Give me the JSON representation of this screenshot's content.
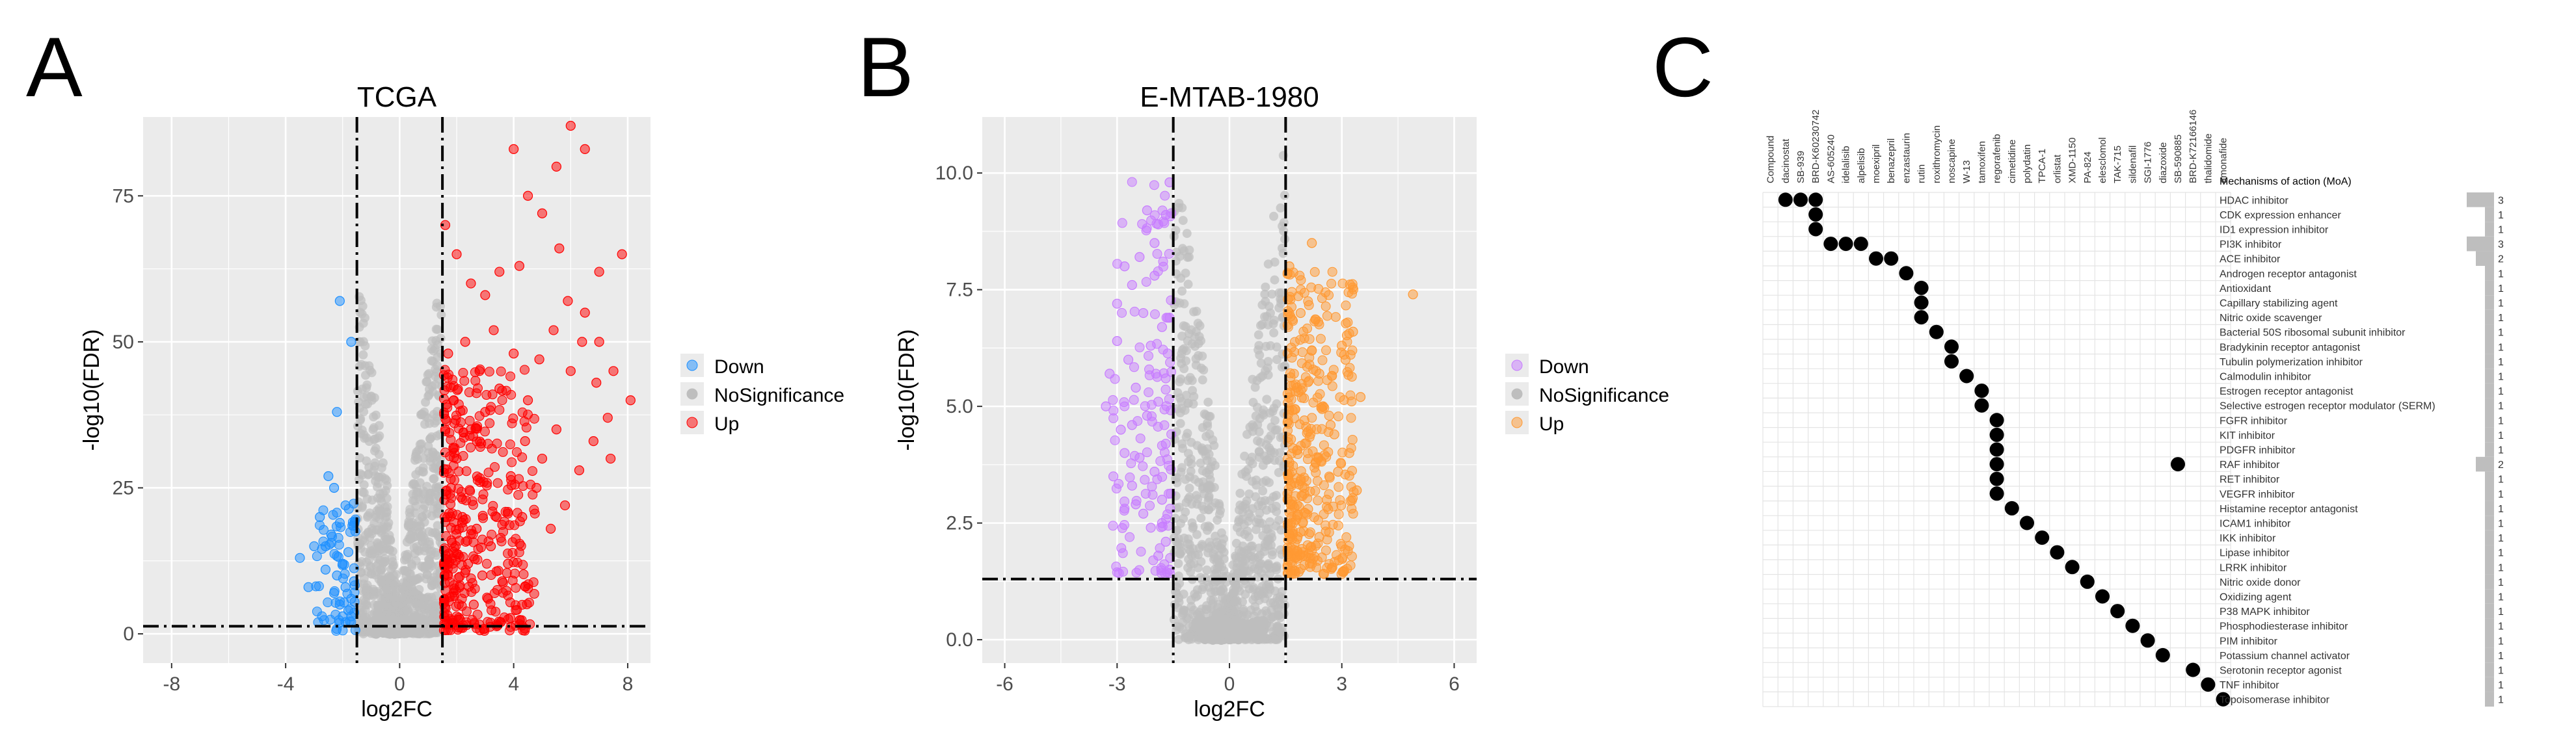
{
  "panels": {
    "a": {
      "letter": "A"
    },
    "b": {
      "letter": "B"
    },
    "c": {
      "letter": "C"
    }
  },
  "colors": {
    "panel_bg": "#ebebeb",
    "grid": "#ffffff",
    "down_a": "#1e90ff",
    "up_a": "#ff0000",
    "down_b": "#c77cff",
    "up_b": "#ff9933",
    "nosig": "#bebebe",
    "dot": "#000000",
    "bar": "#bebebe"
  },
  "chart_data": [
    {
      "type": "scatter",
      "title": "TCGA",
      "xlabel": "log2FC",
      "ylabel": "-log10(FDR)",
      "xlim": [
        -9,
        8.8
      ],
      "ylim": [
        -5,
        88.5
      ],
      "xticks": [
        -8,
        -4,
        0,
        4,
        8
      ],
      "yticks": [
        0,
        25,
        50,
        75
      ],
      "fc_threshold": 1.5,
      "fdr_line": 1.3,
      "legend": {
        "position": "right",
        "entries": [
          "Down",
          "NoSignificance",
          "Up"
        ]
      },
      "series": [
        {
          "name": "Down",
          "points": [
            [
              -2.2,
              38
            ],
            [
              -1.7,
              50
            ],
            [
              -2.3,
              25
            ],
            [
              -2.5,
              27
            ],
            [
              -1.9,
              22
            ],
            [
              -2.1,
              19
            ],
            [
              -2.4,
              17
            ],
            [
              -2.6,
              15
            ],
            [
              -1.8,
              14
            ],
            [
              -2.0,
              12
            ],
            [
              -2.2,
              10
            ],
            [
              -1.9,
              8
            ],
            [
              -1.7,
              6
            ],
            [
              -2.1,
              5
            ],
            [
              -1.8,
              4
            ],
            [
              -2.3,
              7
            ],
            [
              -1.6,
              9
            ],
            [
              -2.0,
              3
            ],
            [
              -3.0,
              15
            ],
            [
              -2.8,
              20
            ],
            [
              -2.6,
              11
            ],
            [
              -3.5,
              13
            ],
            [
              -3.2,
              8
            ],
            [
              -1.9,
              2
            ],
            [
              -1.7,
              3
            ],
            [
              -2.1,
              57
            ]
          ]
        },
        {
          "name": "NoSignificance",
          "range": {
            "x": [
              -1.5,
              1.5
            ],
            "y": [
              0,
              60
            ]
          }
        },
        {
          "name": "Up",
          "points": [
            [
              1.6,
              70
            ],
            [
              2.0,
              65
            ],
            [
              2.5,
              60
            ],
            [
              3.0,
              58
            ],
            [
              3.5,
              62
            ],
            [
              4.0,
              83
            ],
            [
              4.5,
              75
            ],
            [
              5.0,
              72
            ],
            [
              5.5,
              80
            ],
            [
              6.0,
              87
            ],
            [
              6.5,
              83
            ],
            [
              7.0,
              62
            ],
            [
              7.8,
              65
            ],
            [
              8.1,
              40
            ],
            [
              7.5,
              45
            ],
            [
              7.0,
              50
            ],
            [
              6.5,
              55
            ],
            [
              6.0,
              45
            ],
            [
              5.5,
              35
            ],
            [
              5.0,
              30
            ],
            [
              4.5,
              40
            ],
            [
              4.0,
              48
            ],
            [
              3.5,
              42
            ],
            [
              3.0,
              38
            ],
            [
              2.5,
              35
            ],
            [
              2.0,
              30
            ],
            [
              1.8,
              25
            ],
            [
              2.2,
              20
            ],
            [
              2.7,
              18
            ],
            [
              3.2,
              15
            ],
            [
              3.8,
              12
            ],
            [
              4.3,
              20
            ],
            [
              4.8,
              25
            ],
            [
              5.3,
              18
            ],
            [
              5.8,
              22
            ],
            [
              6.3,
              28
            ],
            [
              6.8,
              33
            ],
            [
              7.3,
              37
            ],
            [
              1.7,
              10
            ],
            [
              2.1,
              8
            ],
            [
              2.6,
              5
            ],
            [
              3.1,
              6
            ],
            [
              3.6,
              9
            ],
            [
              1.9,
              14
            ],
            [
              2.4,
              12
            ],
            [
              2.9,
              10
            ],
            [
              3.4,
              20
            ],
            [
              3.9,
              27
            ],
            [
              4.4,
              33
            ],
            [
              4.9,
              47
            ],
            [
              5.4,
              52
            ],
            [
              5.9,
              57
            ],
            [
              6.4,
              50
            ],
            [
              6.9,
              43
            ],
            [
              7.4,
              30
            ],
            [
              5.6,
              66
            ],
            [
              4.2,
              63
            ],
            [
              3.3,
              52
            ],
            [
              2.8,
              45
            ],
            [
              2.3,
              50
            ],
            [
              1.9,
              40
            ],
            [
              1.6,
              35
            ],
            [
              1.7,
              48
            ]
          ]
        }
      ]
    },
    {
      "type": "scatter",
      "title": "E-MTAB-1980",
      "xlabel": "log2FC",
      "ylabel": "-log10(FDR)",
      "xlim": [
        -6.6,
        6.6
      ],
      "ylim": [
        -0.5,
        11.2
      ],
      "xticks": [
        -6,
        -3,
        0,
        3,
        6
      ],
      "yticks": [
        0.0,
        2.5,
        5.0,
        7.5,
        10.0
      ],
      "fc_threshold": 1.5,
      "fdr_line": 1.3,
      "legend": {
        "position": "right",
        "entries": [
          "Down",
          "NoSignificance",
          "Up"
        ]
      },
      "series": [
        {
          "name": "Down",
          "points": [
            [
              -1.6,
              9.8
            ],
            [
              -1.7,
              9.1
            ],
            [
              -1.9,
              8.9
            ],
            [
              -2.0,
              8.5
            ],
            [
              -2.4,
              8.2
            ],
            [
              -2.8,
              8.0
            ],
            [
              -2.6,
              7.6
            ],
            [
              -3.0,
              7.2
            ],
            [
              -2.3,
              7.0
            ],
            [
              -1.8,
              6.7
            ],
            [
              -2.1,
              6.3
            ],
            [
              -2.7,
              6.0
            ],
            [
              -3.2,
              5.7
            ],
            [
              -2.5,
              5.4
            ],
            [
              -1.9,
              5.1
            ],
            [
              -2.2,
              4.8
            ],
            [
              -2.9,
              4.5
            ],
            [
              -1.7,
              4.2
            ],
            [
              -2.4,
              3.9
            ],
            [
              -2.0,
              3.6
            ],
            [
              -2.6,
              3.3
            ],
            [
              -1.8,
              3.0
            ],
            [
              -2.3,
              2.7
            ],
            [
              -2.1,
              2.4
            ],
            [
              -1.7,
              2.1
            ],
            [
              -1.9,
              1.8
            ],
            [
              -1.6,
              1.5
            ],
            [
              -2.5,
              2.9
            ],
            [
              -2.8,
              4.0
            ],
            [
              -3.3,
              5.0
            ],
            [
              -3.0,
              6.4
            ],
            [
              -2.2,
              9.2
            ],
            [
              -2.0,
              7.8
            ],
            [
              -1.6,
              6.9
            ],
            [
              -1.7,
              5.6
            ],
            [
              -2.6,
              4.6
            ],
            [
              -3.1,
              3.5
            ],
            [
              -1.8,
              2.5
            ]
          ]
        },
        {
          "name": "NoSignificance",
          "range": {
            "x": [
              -1.5,
              1.5
            ],
            "y": [
              0,
              10.3
            ]
          }
        },
        {
          "name": "Up",
          "points": [
            [
              1.6,
              8.0
            ],
            [
              2.2,
              8.5
            ],
            [
              3.0,
              6.3
            ],
            [
              3.3,
              6.6
            ],
            [
              3.1,
              6.0
            ],
            [
              2.4,
              5.7
            ],
            [
              4.9,
              7.4
            ],
            [
              1.8,
              5.4
            ],
            [
              2.5,
              5.0
            ],
            [
              2.0,
              4.7
            ],
            [
              2.8,
              4.4
            ],
            [
              1.7,
              4.1
            ],
            [
              2.3,
              3.8
            ],
            [
              2.9,
              3.6
            ],
            [
              3.4,
              3.2
            ],
            [
              1.9,
              3.4
            ],
            [
              2.6,
              3.0
            ],
            [
              2.1,
              2.8
            ],
            [
              1.7,
              2.5
            ],
            [
              2.4,
              2.2
            ],
            [
              1.8,
              1.9
            ],
            [
              2.0,
              1.6
            ],
            [
              3.5,
              5.2
            ],
            [
              3.2,
              4.0
            ],
            [
              1.6,
              3.8
            ],
            [
              2.7,
              4.6
            ],
            [
              2.2,
              6.2
            ],
            [
              1.9,
              7.0
            ]
          ]
        }
      ]
    },
    {
      "type": "matrix",
      "header_label": "Compound",
      "moa_header": "Mechanisms of action (MoA)",
      "compounds": [
        "dacinostat",
        "SB-939",
        "BRD-K60230742",
        "AS-605240",
        "idelalisib",
        "alpelisib",
        "moexipril",
        "benazepril",
        "enzastaurin",
        "rutin",
        "roxithromycin",
        "noscapine",
        "W-13",
        "tamoxifen",
        "regorafenib",
        "cimetidine",
        "polydatin",
        "TPCA-1",
        "orlistat",
        "XMD-1150",
        "PA-824",
        "elesclomol",
        "TAK-715",
        "sildenafil",
        "SGI-1776",
        "diazoxide",
        "SB-590885",
        "BRD-K72166146",
        "thalidomide",
        "amonafide"
      ],
      "moa": [
        {
          "name": "HDAC inhibitor",
          "count": 3
        },
        {
          "name": "CDK expression enhancer",
          "count": 1
        },
        {
          "name": "ID1 expression inhibitor",
          "count": 1
        },
        {
          "name": "PI3K inhibitor",
          "count": 3
        },
        {
          "name": "ACE inhibitor",
          "count": 2
        },
        {
          "name": "Androgen receptor antagonist",
          "count": 1
        },
        {
          "name": "Antioxidant",
          "count": 1
        },
        {
          "name": "Capillary stabilizing agent",
          "count": 1
        },
        {
          "name": "Nitric oxide scavenger",
          "count": 1
        },
        {
          "name": "Bacterial 50S ribosomal subunit inhibitor",
          "count": 1
        },
        {
          "name": "Bradykinin receptor antagonist",
          "count": 1
        },
        {
          "name": "Tubulin polymerization inhibitor",
          "count": 1
        },
        {
          "name": "Calmodulin inhibitor",
          "count": 1
        },
        {
          "name": "Estrogen receptor antagonist",
          "count": 1
        },
        {
          "name": "Selective estrogen receptor modulator (SERM)",
          "count": 1
        },
        {
          "name": "FGFR inhibitor",
          "count": 1
        },
        {
          "name": "KIT inhibitor",
          "count": 1
        },
        {
          "name": "PDGFR inhibitor",
          "count": 1
        },
        {
          "name": "RAF inhibitor",
          "count": 2
        },
        {
          "name": "RET inhibitor",
          "count": 1
        },
        {
          "name": "VEGFR inhibitor",
          "count": 1
        },
        {
          "name": "Histamine receptor antagonist",
          "count": 1
        },
        {
          "name": "ICAM1 inhibitor",
          "count": 1
        },
        {
          "name": "IKK inhibitor",
          "count": 1
        },
        {
          "name": "Lipase inhibitor",
          "count": 1
        },
        {
          "name": "LRRK inhibitor",
          "count": 1
        },
        {
          "name": "Nitric oxide donor",
          "count": 1
        },
        {
          "name": "Oxidizing agent",
          "count": 1
        },
        {
          "name": "P38 MAPK inhibitor",
          "count": 1
        },
        {
          "name": "Phosphodiesterase inhibitor",
          "count": 1
        },
        {
          "name": "PIM inhibitor",
          "count": 1
        },
        {
          "name": "Potassium channel activator",
          "count": 1
        },
        {
          "name": "Serotonin receptor agonist",
          "count": 1
        },
        {
          "name": "TNF inhibitor",
          "count": 1
        },
        {
          "name": "Topoisomerase inhibitor",
          "count": 1
        }
      ],
      "dots": [
        [
          0,
          0
        ],
        [
          1,
          0
        ],
        [
          2,
          0
        ],
        [
          2,
          1
        ],
        [
          2,
          2
        ],
        [
          3,
          3
        ],
        [
          4,
          3
        ],
        [
          5,
          3
        ],
        [
          6,
          4
        ],
        [
          7,
          4
        ],
        [
          8,
          5
        ],
        [
          9,
          6
        ],
        [
          9,
          7
        ],
        [
          9,
          8
        ],
        [
          10,
          9
        ],
        [
          11,
          10
        ],
        [
          11,
          11
        ],
        [
          12,
          12
        ],
        [
          13,
          13
        ],
        [
          13,
          14
        ],
        [
          14,
          15
        ],
        [
          14,
          16
        ],
        [
          14,
          17
        ],
        [
          14,
          18
        ],
        [
          14,
          19
        ],
        [
          14,
          20
        ],
        [
          15,
          21
        ],
        [
          16,
          22
        ],
        [
          17,
          23
        ],
        [
          18,
          24
        ],
        [
          19,
          25
        ],
        [
          20,
          26
        ],
        [
          21,
          27
        ],
        [
          22,
          28
        ],
        [
          23,
          29
        ],
        [
          24,
          30
        ],
        [
          25,
          31
        ],
        [
          26,
          18
        ],
        [
          27,
          32
        ],
        [
          28,
          33
        ],
        [
          29,
          34
        ]
      ]
    }
  ]
}
